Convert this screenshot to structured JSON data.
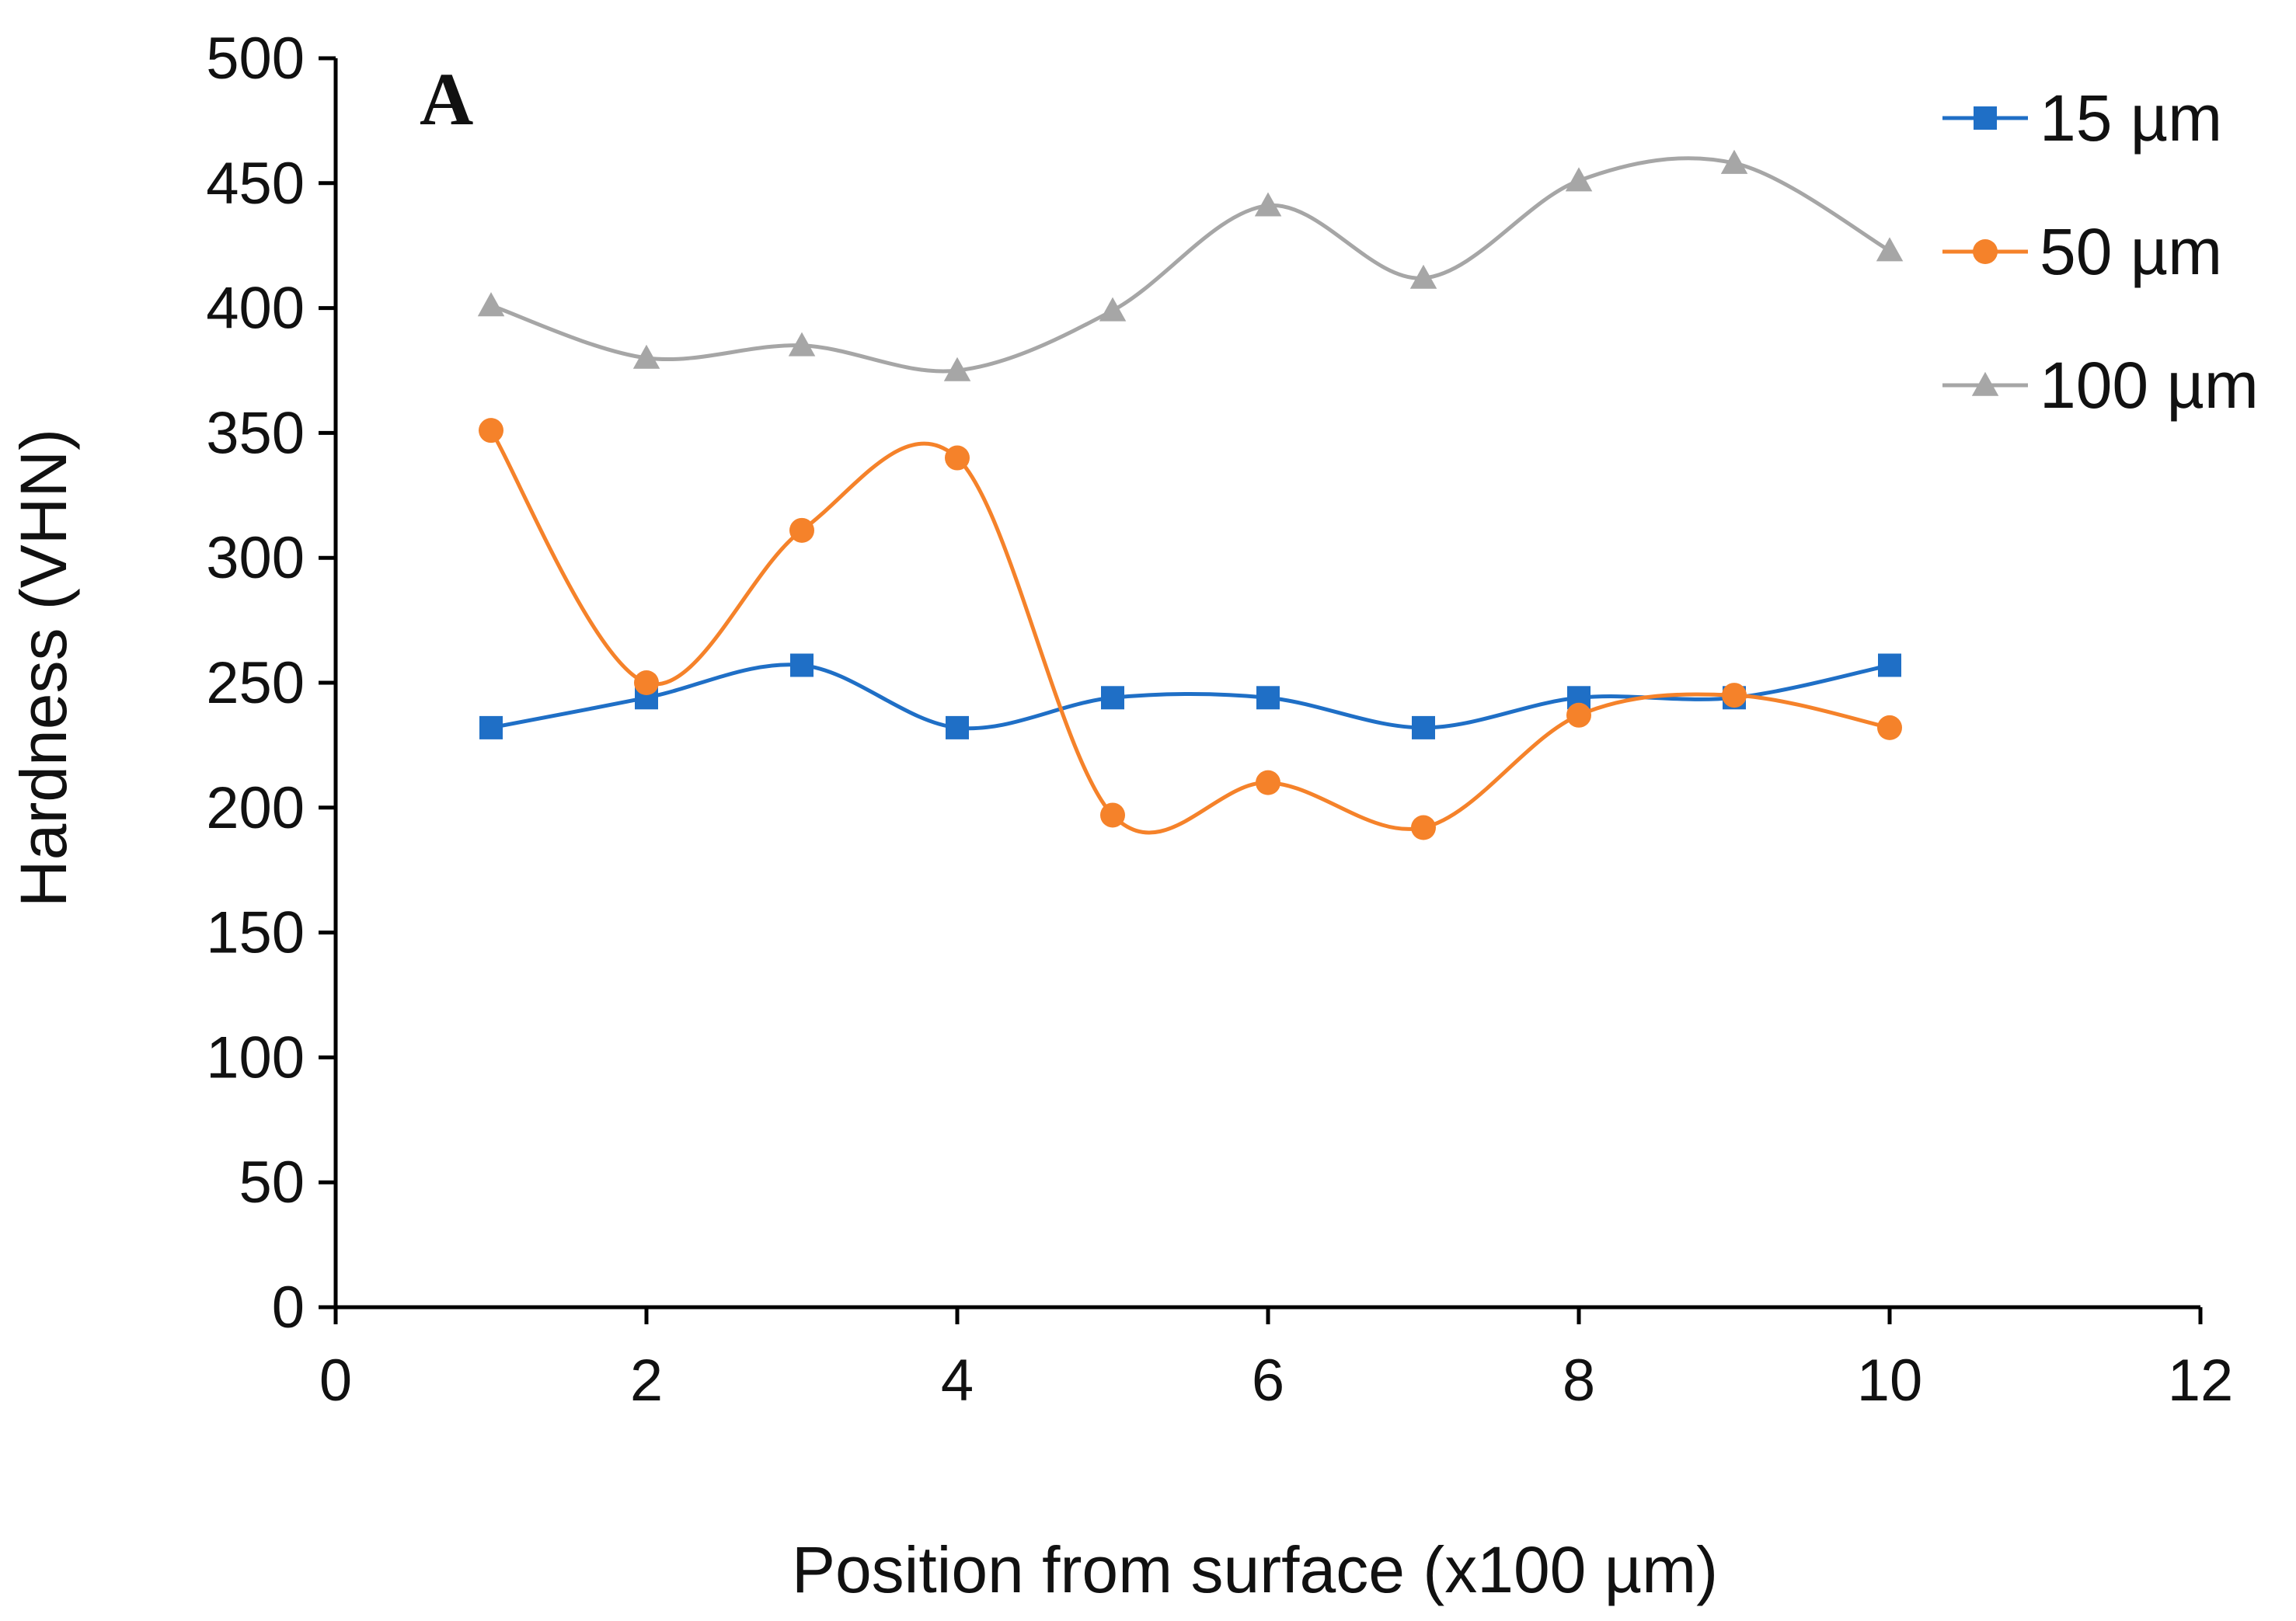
{
  "chart_data": {
    "type": "line",
    "panel_label": "A",
    "title": "",
    "xlabel": "Position from surface (x100 µm)",
    "ylabel": "Hardness (VHN)",
    "xlim": [
      0,
      12
    ],
    "ylim": [
      0,
      500
    ],
    "xticks": [
      0,
      2,
      4,
      6,
      8,
      10,
      12
    ],
    "yticks": [
      0,
      50,
      100,
      150,
      200,
      250,
      300,
      350,
      400,
      450,
      500
    ],
    "x": [
      1,
      2,
      3,
      4,
      5,
      6,
      7,
      8,
      9,
      10
    ],
    "grid": false,
    "smooth": true,
    "legend_position": "top-right",
    "series": [
      {
        "name": "15 µm",
        "color": "#1f6fc6",
        "marker": "square",
        "values": [
          232,
          244,
          257,
          232,
          244,
          244,
          232,
          244,
          244,
          257
        ]
      },
      {
        "name": "50 µm",
        "color": "#f5822a",
        "marker": "circle",
        "values": [
          351,
          250,
          311,
          340,
          197,
          210,
          192,
          237,
          245,
          232
        ]
      },
      {
        "name": "100 µm",
        "color": "#a6a6a6",
        "marker": "triangle",
        "values": [
          401,
          380,
          385,
          375,
          399,
          441,
          412,
          451,
          458,
          423
        ]
      }
    ]
  }
}
